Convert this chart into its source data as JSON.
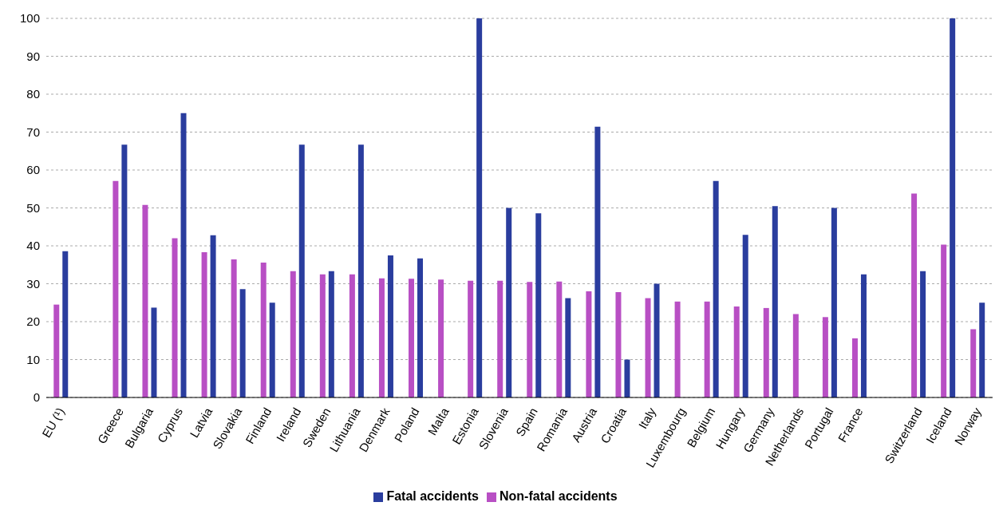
{
  "chart_data": {
    "type": "bar",
    "categories": [
      "EU (¹)",
      null,
      "Greece",
      "Bulgaria",
      "Cyprus",
      "Latvia",
      "Slovakia",
      "Finland",
      "Ireland",
      "Sweden",
      "Lithuania",
      "Denmark",
      "Poland",
      "Malta",
      "Estonia",
      "Slovenia",
      "Spain",
      "Romania",
      "Austria",
      "Croatia",
      "Italy",
      "Luxembourg",
      "Belgium",
      "Hungary",
      "Germany",
      "Netherlands",
      "Portugal",
      "France",
      null,
      "Switzerland",
      "Iceland",
      "Norway"
    ],
    "series": [
      {
        "name": "Non-fatal accidents",
        "color": "#b84fc4",
        "values": [
          24.5,
          null,
          57.1,
          50.8,
          42,
          38.3,
          36.4,
          35.6,
          33.3,
          32.5,
          32.5,
          31.4,
          31.3,
          31.1,
          30.8,
          30.8,
          30.5,
          30.6,
          28,
          27.8,
          26.2,
          25.3,
          25.3,
          24,
          23.6,
          22,
          21.2,
          15.6,
          null,
          53.8,
          40.3,
          18
        ]
      },
      {
        "name": "Fatal accidents",
        "color": "#2a3d9e",
        "values": [
          38.6,
          null,
          66.7,
          23.7,
          75,
          42.8,
          28.6,
          25,
          66.7,
          33.3,
          66.7,
          37.5,
          36.7,
          null,
          100,
          50,
          48.6,
          26.2,
          71.4,
          10,
          30,
          null,
          57.1,
          42.9,
          50.5,
          null,
          50,
          32.5,
          null,
          33.3,
          100,
          25
        ]
      }
    ],
    "ylim": [
      0,
      100
    ],
    "yticks": [
      0,
      10,
      20,
      30,
      40,
      50,
      60,
      70,
      80,
      90,
      100
    ],
    "grid": "y",
    "legend": "bottom"
  }
}
